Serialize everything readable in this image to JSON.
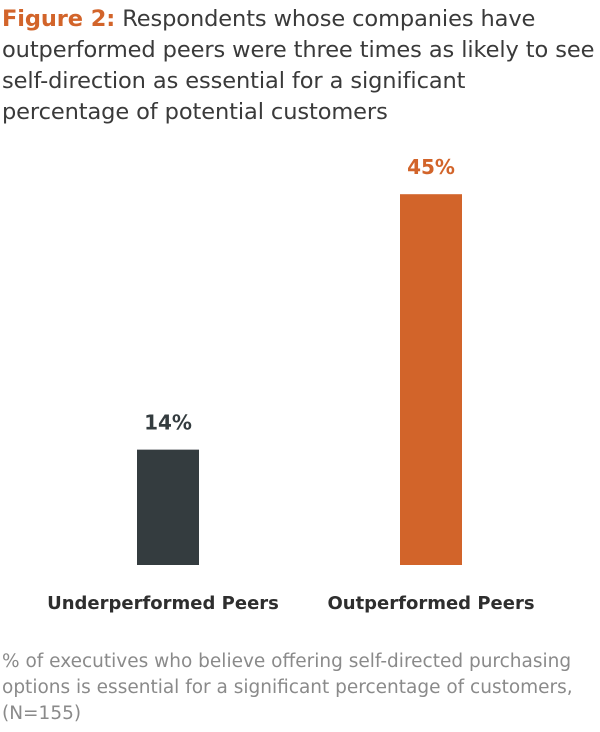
{
  "figure": {
    "label": "Figure 2:",
    "title": "Respondents whose companies have outperformed peers were three times as likely to see self-direction as essential for a significant percentage of potential customers"
  },
  "caption": "% of executives who believe offering self-directed purchasing options is essential for a significant percentage of customers, (N=155)",
  "chart_data": {
    "type": "bar",
    "categories": [
      "Underperformed Peers",
      "Outperformed Peers"
    ],
    "values": [
      14,
      45
    ],
    "value_labels": [
      "14%",
      "45%"
    ],
    "colors": [
      "#343c3f",
      "#d2642a"
    ],
    "ylim": [
      0,
      50
    ],
    "grid": false,
    "legend": "none"
  }
}
